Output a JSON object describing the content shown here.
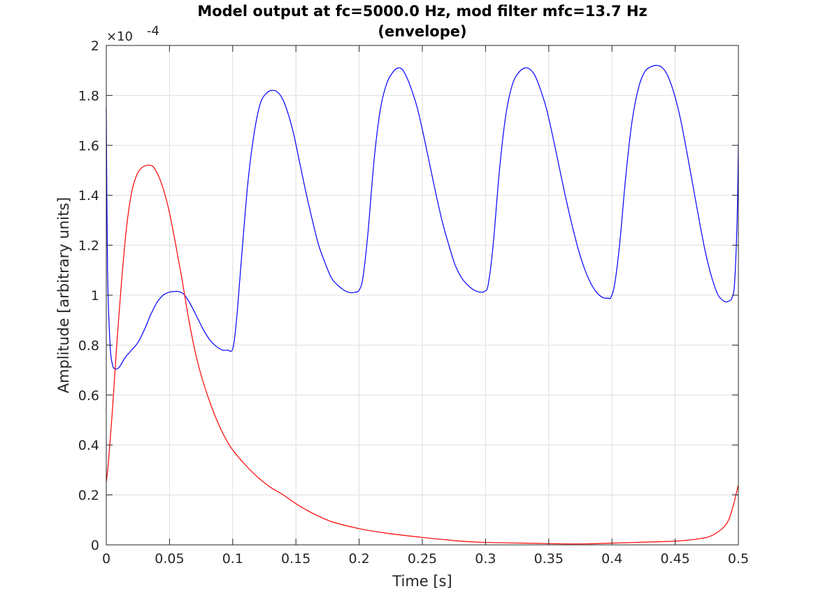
{
  "chart_data": {
    "type": "line",
    "title": "Model output at fc=5000.0 Hz, mod filter mfc=13.7 Hz",
    "subtitle": "(envelope)",
    "xlabel": "Time [s]",
    "ylabel": "Amplitude [arbitrary units]",
    "y_exponent_label": "×10",
    "y_exponent": "-4",
    "xlim": [
      0,
      0.5
    ],
    "ylim": [
      0,
      2
    ],
    "grid": true,
    "x_ticks": [
      "0",
      "0.05",
      "0.1",
      "0.15",
      "0.2",
      "0.25",
      "0.3",
      "0.35",
      "0.4",
      "0.45",
      "0.5"
    ],
    "y_ticks": [
      "0",
      "0.2",
      "0.4",
      "0.6",
      "0.8",
      "1",
      "1.2",
      "1.4",
      "1.6",
      "1.8",
      "2"
    ],
    "series": [
      {
        "color": "#0000ff",
        "x": [
          0,
          0.001,
          0.003,
          0.005,
          0.007,
          0.01,
          0.015,
          0.02,
          0.025,
          0.03,
          0.035,
          0.04,
          0.045,
          0.05,
          0.055,
          0.058,
          0.062,
          0.067,
          0.072,
          0.077,
          0.082,
          0.087,
          0.092,
          0.096,
          0.1,
          0.103,
          0.107,
          0.112,
          0.117,
          0.122,
          0.127,
          0.131,
          0.135,
          0.139,
          0.143,
          0.148,
          0.153,
          0.158,
          0.163,
          0.168,
          0.173,
          0.178,
          0.183,
          0.188,
          0.193,
          0.197,
          0.2,
          0.203,
          0.207,
          0.212,
          0.217,
          0.222,
          0.227,
          0.231,
          0.234,
          0.237,
          0.241,
          0.246,
          0.251,
          0.256,
          0.261,
          0.266,
          0.271,
          0.276,
          0.281,
          0.286,
          0.291,
          0.296,
          0.299,
          0.302,
          0.306,
          0.311,
          0.316,
          0.321,
          0.326,
          0.331,
          0.335,
          0.339,
          0.343,
          0.348,
          0.353,
          0.358,
          0.363,
          0.368,
          0.373,
          0.378,
          0.383,
          0.388,
          0.393,
          0.397,
          0.399,
          0.402,
          0.406,
          0.411,
          0.416,
          0.421,
          0.426,
          0.431,
          0.436,
          0.44,
          0.444,
          0.449,
          0.454,
          0.459,
          0.464,
          0.469,
          0.474,
          0.479,
          0.484,
          0.489,
          0.492,
          0.495,
          0.497,
          0.499,
          0.5
        ],
        "values": [
          1.75,
          1.1,
          0.8,
          0.72,
          0.705,
          0.71,
          0.75,
          0.78,
          0.81,
          0.86,
          0.92,
          0.97,
          1.0,
          1.012,
          1.015,
          1.013,
          1.0,
          0.96,
          0.91,
          0.86,
          0.82,
          0.795,
          0.78,
          0.78,
          0.785,
          0.9,
          1.15,
          1.45,
          1.65,
          1.77,
          1.81,
          1.82,
          1.815,
          1.79,
          1.74,
          1.65,
          1.53,
          1.41,
          1.3,
          1.2,
          1.13,
          1.07,
          1.04,
          1.02,
          1.01,
          1.012,
          1.02,
          1.07,
          1.25,
          1.55,
          1.75,
          1.85,
          1.895,
          1.91,
          1.905,
          1.88,
          1.83,
          1.75,
          1.64,
          1.52,
          1.4,
          1.29,
          1.2,
          1.12,
          1.07,
          1.04,
          1.02,
          1.012,
          1.015,
          1.04,
          1.2,
          1.5,
          1.72,
          1.84,
          1.89,
          1.91,
          1.905,
          1.88,
          1.83,
          1.75,
          1.64,
          1.52,
          1.4,
          1.29,
          1.19,
          1.11,
          1.05,
          1.01,
          0.99,
          0.988,
          0.99,
          1.04,
          1.2,
          1.48,
          1.7,
          1.83,
          1.895,
          1.915,
          1.92,
          1.91,
          1.88,
          1.81,
          1.71,
          1.58,
          1.44,
          1.3,
          1.17,
          1.07,
          1.0,
          0.975,
          0.975,
          0.99,
          1.05,
          1.3,
          1.6
        ]
      },
      {
        "color": "#ff0000",
        "x": [
          0,
          0.002,
          0.005,
          0.008,
          0.012,
          0.016,
          0.02,
          0.024,
          0.028,
          0.032,
          0.035,
          0.037,
          0.039,
          0.042,
          0.046,
          0.05,
          0.055,
          0.06,
          0.065,
          0.07,
          0.075,
          0.08,
          0.085,
          0.09,
          0.095,
          0.1,
          0.11,
          0.12,
          0.13,
          0.14,
          0.15,
          0.16,
          0.17,
          0.18,
          0.2,
          0.22,
          0.25,
          0.28,
          0.3,
          0.33,
          0.36,
          0.38,
          0.4,
          0.42,
          0.45,
          0.47,
          0.48,
          0.49,
          0.495,
          0.5
        ],
        "values": [
          0.25,
          0.35,
          0.55,
          0.78,
          1.05,
          1.27,
          1.41,
          1.48,
          1.51,
          1.52,
          1.52,
          1.515,
          1.5,
          1.47,
          1.41,
          1.33,
          1.2,
          1.06,
          0.91,
          0.78,
          0.68,
          0.6,
          0.53,
          0.47,
          0.42,
          0.38,
          0.32,
          0.27,
          0.23,
          0.2,
          0.165,
          0.135,
          0.11,
          0.09,
          0.065,
          0.048,
          0.03,
          0.015,
          0.01,
          0.007,
          0.004,
          0.004,
          0.007,
          0.01,
          0.015,
          0.025,
          0.04,
          0.08,
          0.14,
          0.24
        ]
      }
    ]
  }
}
